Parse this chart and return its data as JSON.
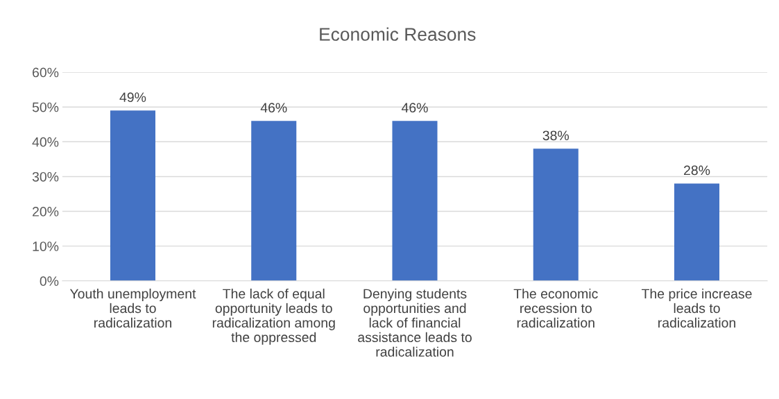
{
  "chart_data": {
    "type": "bar",
    "title": "Economic Reasons",
    "categories": [
      "Youth unemployment leads to radicalization",
      "The lack of equal opportunity leads to radicalization among the oppressed",
      "Denying students opportunities and lack of financial assistance leads to radicalization",
      "The economic recession to radicalization",
      "The price increase leads to radicalization"
    ],
    "values": [
      49,
      46,
      46,
      38,
      28
    ],
    "value_labels": [
      "49%",
      "46%",
      "46%",
      "38%",
      "28%"
    ],
    "color": "#4472c4",
    "ylim": [
      0,
      60
    ],
    "yticks": [
      {
        "value": 0,
        "label": "0%"
      },
      {
        "value": 10,
        "label": "10%"
      },
      {
        "value": 20,
        "label": "20%"
      },
      {
        "value": 30,
        "label": "30%"
      },
      {
        "value": 40,
        "label": "40%"
      },
      {
        "value": 50,
        "label": "50%"
      },
      {
        "value": 60,
        "label": "60%"
      }
    ],
    "grid": "y",
    "legend": false
  }
}
